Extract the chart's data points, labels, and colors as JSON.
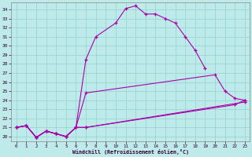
{
  "xlabel": "Windchill (Refroidissement éolien,°C)",
  "bg_color": "#beeaea",
  "grid_color": "#99d5d5",
  "line_color": "#aa00aa",
  "line_color2": "#cc44cc",
  "xlim": [
    -0.5,
    23.5
  ],
  "ylim": [
    19.5,
    34.8
  ],
  "xticks": [
    0,
    1,
    2,
    3,
    4,
    5,
    6,
    7,
    8,
    9,
    10,
    11,
    12,
    13,
    14,
    15,
    16,
    17,
    18,
    19,
    20,
    21,
    22,
    23
  ],
  "yticks": [
    20,
    21,
    22,
    23,
    24,
    25,
    26,
    27,
    28,
    29,
    30,
    31,
    32,
    33,
    34
  ],
  "s1_x": [
    0,
    1,
    2,
    3,
    4,
    5,
    6,
    7,
    8,
    10,
    11,
    12,
    13,
    14,
    15,
    16,
    17,
    18,
    19
  ],
  "s1_y": [
    21.0,
    21.2,
    19.9,
    20.6,
    20.3,
    20.0,
    21.0,
    28.5,
    31.0,
    32.5,
    34.1,
    34.4,
    33.5,
    33.5,
    33.0,
    32.5,
    31.0,
    29.5,
    27.5
  ],
  "s2_x": [
    0,
    1,
    2,
    3,
    4,
    5,
    6,
    7,
    20,
    21,
    22,
    23
  ],
  "s2_y": [
    21.0,
    21.2,
    19.9,
    20.6,
    20.3,
    20.0,
    21.0,
    24.8,
    26.8,
    25.0,
    24.2,
    24.0
  ],
  "s3_x": [
    0,
    1,
    2,
    3,
    4,
    5,
    6,
    7,
    22,
    23
  ],
  "s3_y": [
    21.0,
    21.2,
    19.9,
    20.6,
    20.3,
    20.0,
    21.0,
    21.0,
    23.5,
    24.0
  ],
  "s4_x": [
    0,
    1,
    2,
    3,
    4,
    5,
    6,
    7,
    23
  ],
  "s4_y": [
    21.0,
    21.2,
    19.9,
    20.6,
    20.3,
    20.0,
    21.0,
    21.0,
    23.8
  ]
}
